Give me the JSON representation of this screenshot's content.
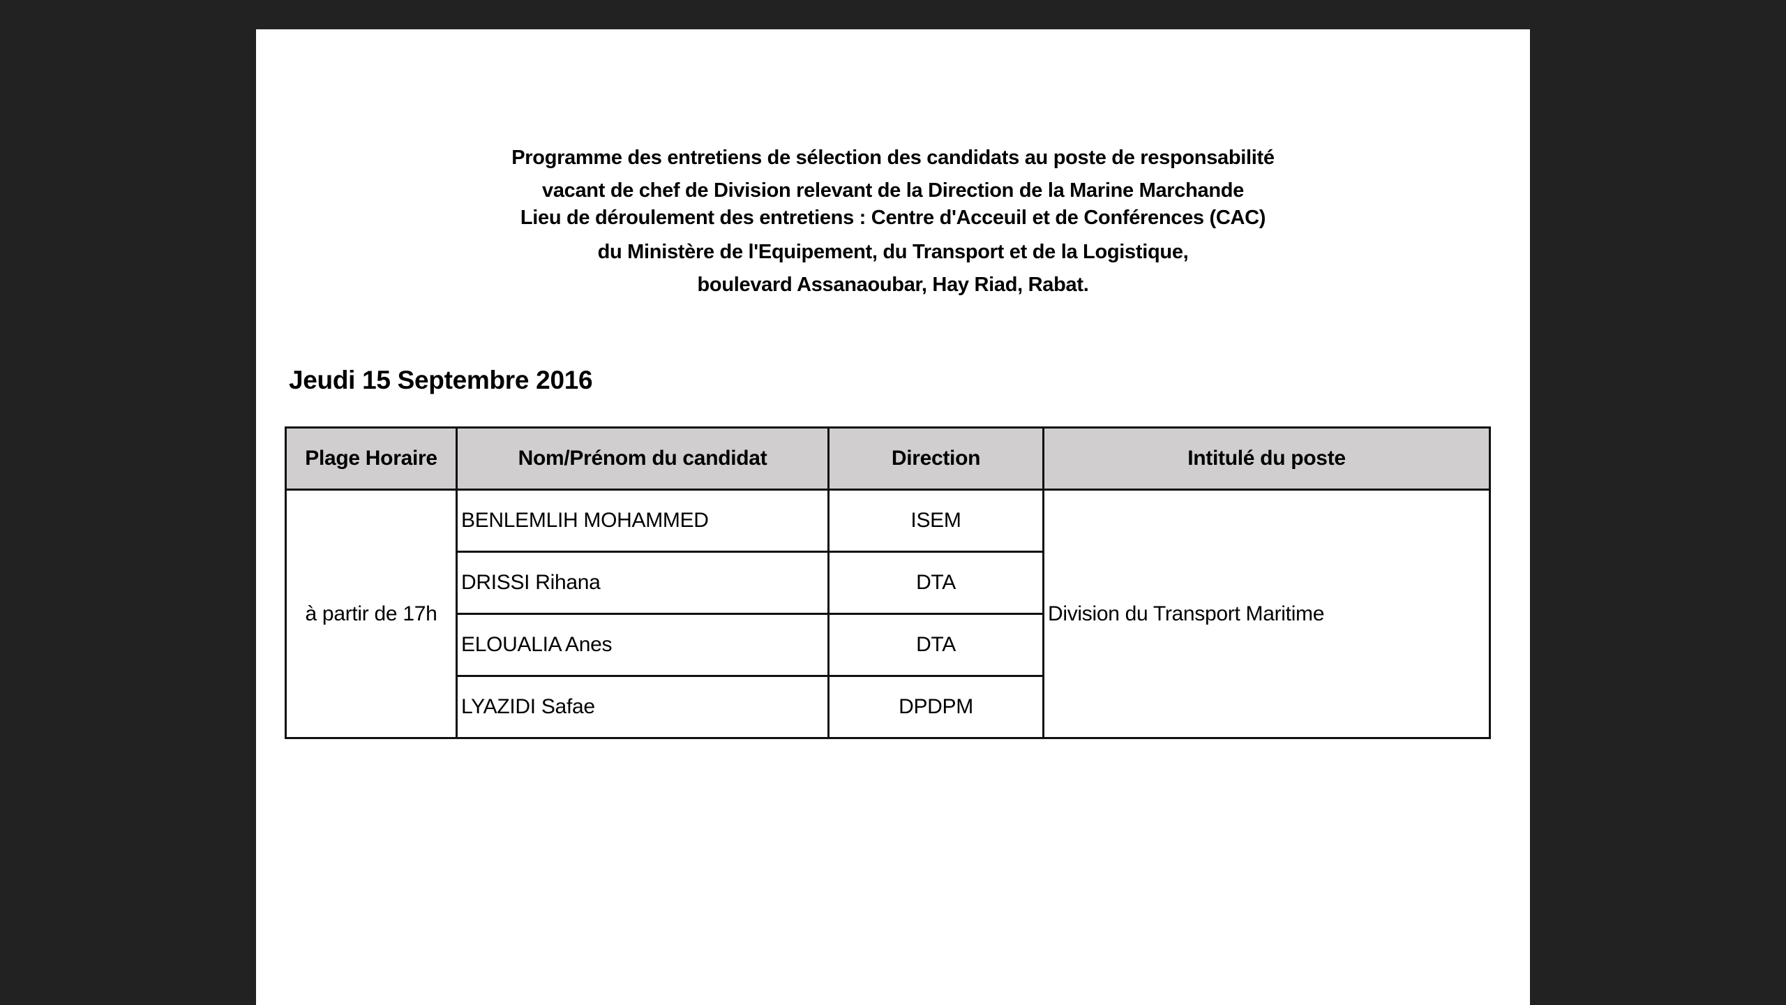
{
  "header": {
    "lines": [
      "Programme des entretiens de sélection des candidats au poste de responsabilité",
      "vacant de chef de Division  relevant de la Direction de la Marine Marchande",
      "Lieu de déroulement des entretiens : Centre d'Acceuil et de Conférences (CAC)",
      "du Ministère de l'Equipement, du Transport et de la Logistique,",
      "boulevard Assanaoubar, Hay Riad, Rabat."
    ],
    "date": "Jeudi 15 Septembre 2016"
  },
  "table": {
    "columns": [
      "Plage Horaire",
      "Nom/Prénom du candidat",
      "Direction",
      "Intitulé du poste"
    ],
    "time_slot": "à partir de 17h",
    "position": "Division du Transport Maritime",
    "rows": [
      {
        "name": "BENLEMLIH MOHAMMED",
        "direction": "ISEM"
      },
      {
        "name": "DRISSI Rihana",
        "direction": "DTA"
      },
      {
        "name": "ELOUALIA Anes",
        "direction": "DTA"
      },
      {
        "name": "LYAZIDI Safae",
        "direction": "DPDPM"
      }
    ],
    "header_fill": "#d0cecf"
  }
}
